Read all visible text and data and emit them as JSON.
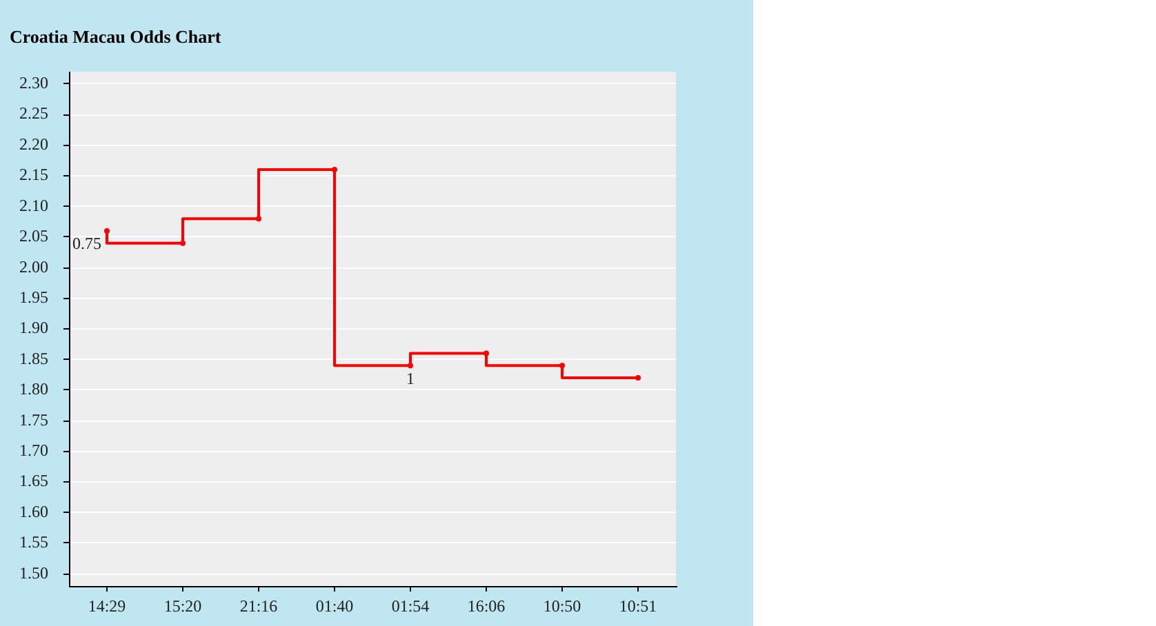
{
  "chart_data": {
    "type": "step",
    "title": "Croatia Macau Odds Chart",
    "categories": [
      "14:29",
      "15:20",
      "21:16",
      "01:40",
      "01:54",
      "16:06",
      "10:50",
      "10:51"
    ],
    "series": [
      {
        "color": "#ff0000",
        "values": [
          2.06,
          2.04,
          2.08,
          2.16,
          1.84,
          1.86,
          1.84,
          1.82
        ]
      }
    ],
    "ylim": [
      1.48,
      2.32
    ],
    "yticks": [
      {
        "value": 1.5,
        "label": "1.50"
      },
      1.55,
      {
        "value": 1.6,
        "label": "1.60"
      },
      1.65,
      {
        "value": 1.7,
        "label": "1.70"
      },
      1.75,
      {
        "value": 1.8,
        "label": "1.80"
      },
      1.85,
      {
        "value": 1.9,
        "label": "1.90"
      },
      1.95,
      {
        "value": 2,
        "label": "2.00"
      },
      2.05,
      {
        "value": 2.1,
        "label": "2.10"
      },
      2.15,
      {
        "value": 2.2,
        "label": "2.20"
      },
      2.25,
      {
        "value": 2.3,
        "label": "2.30"
      }
    ],
    "grid": "y",
    "marker": "circle",
    "line_style": "solid",
    "annotations": [
      {
        "text": "0.75",
        "x": "14:29",
        "y": 2.04
      },
      {
        "text": "1",
        "x": "01:54",
        "y": 1.84
      }
    ]
  }
}
